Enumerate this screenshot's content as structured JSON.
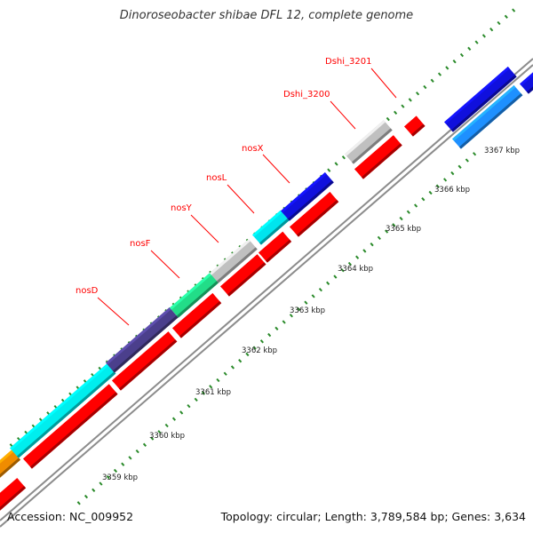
{
  "title": "Dinoroseobacter shibae DFL 12, complete genome",
  "footer": {
    "accession": "Accession: NC_009952",
    "summary": "Topology: circular; Length: 3,789,584 bp; Genes: 3,634"
  },
  "colors": {
    "backbone": "#8c8c8c",
    "cds": "#ff0000",
    "tick": "#2a8a2a",
    "label": "#ff0000",
    "kbp_text": "#222222"
  },
  "scale": {
    "labels": [
      "3359 kbp",
      "3360 kbp",
      "3361 kbp",
      "3362 kbp",
      "3363 kbp",
      "3364 kbp",
      "3365 kbp",
      "3366 kbp",
      "3367 kbp"
    ]
  },
  "gene_labels": [
    "nosD",
    "nosF",
    "nosY",
    "nosL",
    "nosX",
    "Dshi_3200",
    "Dshi_3201"
  ],
  "features": {
    "outer_ring": [
      {
        "name": "segment",
        "color": "#f08c00"
      },
      {
        "name": "segment",
        "color": "#00eeee"
      },
      {
        "name": "nosD",
        "color": "#4b3f8c"
      },
      {
        "name": "nosF",
        "color": "#22dd88"
      },
      {
        "name": "nosY",
        "color": "#c0c0c0"
      },
      {
        "name": "nosL",
        "color": "#00e5ee"
      },
      {
        "name": "nosX",
        "color": "#1010dd"
      },
      {
        "name": "Dshi_3200",
        "color": "#c0c0c0"
      },
      {
        "name": "segment",
        "color": "#1010dd"
      },
      {
        "name": "segment",
        "color": "#1010dd"
      }
    ],
    "inner_ring": [
      {
        "name": "segment",
        "color": "#ff0000"
      },
      {
        "name": "segment",
        "color": "#ff0000"
      },
      {
        "name": "segment",
        "color": "#ff0000"
      },
      {
        "name": "segment",
        "color": "#ff0000"
      },
      {
        "name": "segment",
        "color": "#ff0000"
      },
      {
        "name": "segment",
        "color": "#ff0000"
      },
      {
        "name": "segment",
        "color": "#ff0000"
      },
      {
        "name": "segment",
        "color": "#ff0000"
      },
      {
        "name": "Dshi_3201",
        "color": "#ff0000"
      },
      {
        "name": "segment",
        "color": "#1e90ff"
      }
    ]
  }
}
